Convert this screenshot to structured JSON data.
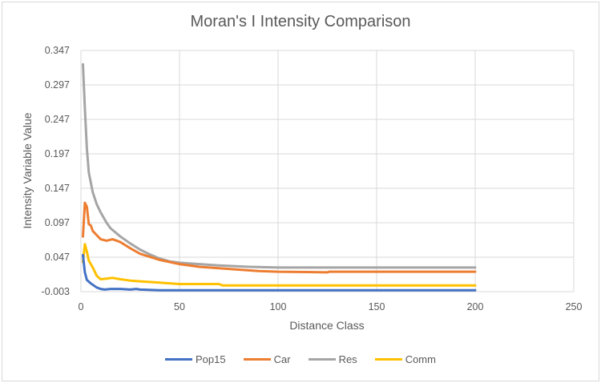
{
  "chart_data": {
    "type": "line",
    "title": "Moran's I Intensity Comparison",
    "xlabel": "Distance Class",
    "ylabel": "Intensity Variable Value",
    "xlim": [
      0,
      250
    ],
    "ylim": [
      -0.003,
      0.347
    ],
    "xticks": [
      0,
      50,
      100,
      150,
      200,
      250
    ],
    "yticks": [
      -0.003,
      0.047,
      0.097,
      0.147,
      0.197,
      0.247,
      0.297,
      0.347
    ],
    "ytick_labels": [
      "-0.003",
      "0.047",
      "0.097",
      "0.147",
      "0.197",
      "0.247",
      "0.297",
      "0.347"
    ],
    "grid": true,
    "legend_position": "bottom",
    "series": [
      {
        "name": "Pop15",
        "color": "#4472c4",
        "x": [
          1,
          2,
          3,
          5,
          8,
          10,
          12,
          15,
          20,
          25,
          28,
          30,
          40,
          50,
          100,
          200
        ],
        "y": [
          0.05,
          0.025,
          0.014,
          0.009,
          0.003,
          0.001,
          0.0,
          0.001,
          0.001,
          0.0,
          0.001,
          0.0,
          -0.001,
          -0.001,
          -0.001,
          -0.001
        ]
      },
      {
        "name": "Car",
        "color": "#ed7d31",
        "x": [
          1,
          2,
          3,
          4,
          5,
          6,
          8,
          10,
          13,
          16,
          20,
          25,
          30,
          40,
          50,
          60,
          70,
          80,
          90,
          100,
          125,
          126,
          150,
          200
        ],
        "y": [
          0.077,
          0.126,
          0.12,
          0.095,
          0.093,
          0.085,
          0.079,
          0.073,
          0.071,
          0.073,
          0.069,
          0.06,
          0.052,
          0.043,
          0.037,
          0.033,
          0.031,
          0.029,
          0.027,
          0.026,
          0.025,
          0.026,
          0.026,
          0.026
        ]
      },
      {
        "name": "Res",
        "color": "#a5a5a5",
        "x": [
          1,
          2,
          3,
          4,
          6,
          8,
          10,
          13,
          15,
          20,
          25,
          30,
          35,
          40,
          45,
          50,
          60,
          70,
          85,
          100,
          150,
          200
        ],
        "y": [
          0.327,
          0.263,
          0.205,
          0.17,
          0.141,
          0.124,
          0.112,
          0.097,
          0.089,
          0.077,
          0.067,
          0.058,
          0.051,
          0.045,
          0.041,
          0.039,
          0.037,
          0.035,
          0.033,
          0.032,
          0.032,
          0.032
        ]
      },
      {
        "name": "Comm",
        "color": "#ffc000",
        "x": [
          1,
          2,
          3,
          4,
          6,
          8,
          10,
          13,
          16,
          20,
          25,
          30,
          40,
          50,
          70,
          72,
          100,
          150,
          200
        ],
        "y": [
          0.04,
          0.066,
          0.055,
          0.042,
          0.032,
          0.02,
          0.015,
          0.016,
          0.017,
          0.015,
          0.013,
          0.012,
          0.01,
          0.008,
          0.008,
          0.006,
          0.006,
          0.006,
          0.006
        ]
      }
    ]
  }
}
